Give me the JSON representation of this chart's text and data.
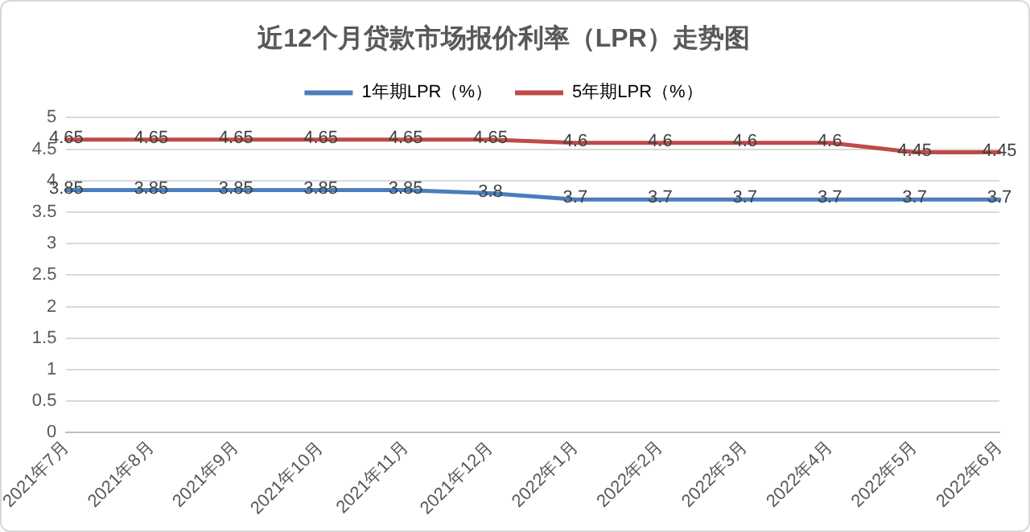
{
  "chart_data": {
    "type": "line",
    "title": "近12个月贷款市场报价利率（LPR）走势图",
    "categories": [
      "2021年7月",
      "2021年8月",
      "2021年9月",
      "2021年10月",
      "2021年11月",
      "2021年12月",
      "2022年1月",
      "2022年2月",
      "2022年3月",
      "2022年4月",
      "2022年5月",
      "2022年6月"
    ],
    "series": [
      {
        "name": "1年期LPR（%）",
        "color": "#4a7ebb",
        "values": [
          3.85,
          3.85,
          3.85,
          3.85,
          3.85,
          3.8,
          3.7,
          3.7,
          3.7,
          3.7,
          3.7,
          3.7
        ]
      },
      {
        "name": "5年期LPR（%）",
        "color": "#be4b48",
        "values": [
          4.65,
          4.65,
          4.65,
          4.65,
          4.65,
          4.65,
          4.6,
          4.6,
          4.6,
          4.6,
          4.45,
          4.45
        ]
      }
    ],
    "ylim": [
      0,
      5
    ],
    "yticks": [
      0,
      0.5,
      1,
      1.5,
      2,
      2.5,
      3,
      3.5,
      4,
      4.5,
      5
    ],
    "grid": "y",
    "legend": "top",
    "marker": "none",
    "line_style": "solid",
    "data_labels": true
  }
}
